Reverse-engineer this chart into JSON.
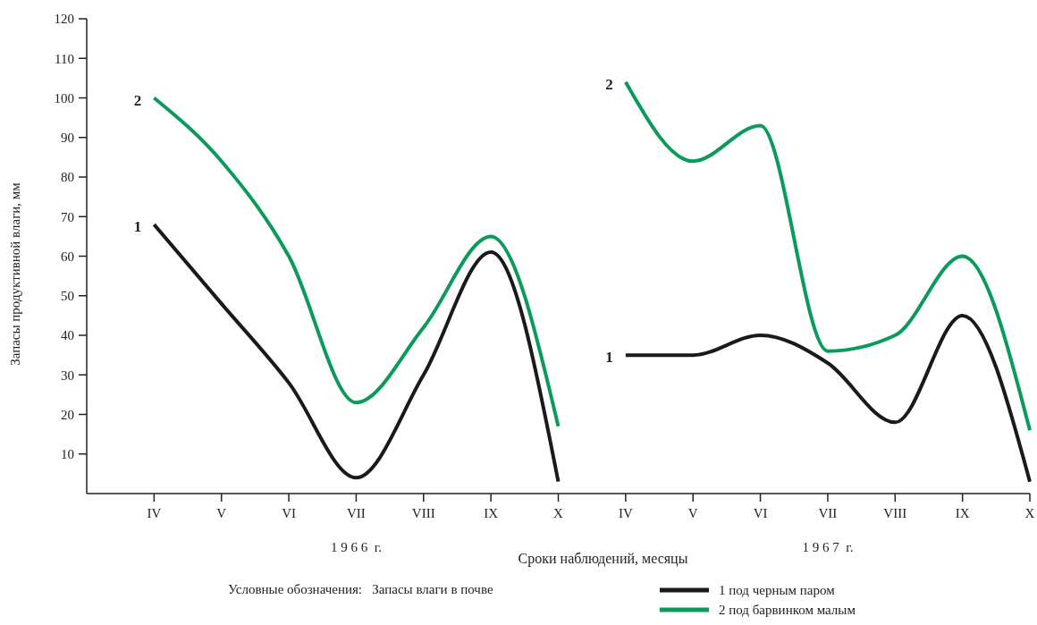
{
  "chart_data": {
    "type": "line",
    "ylabel": "Запасы продуктивной влаги, мм",
    "xlabel": "Сроки наблюдений, месяцы",
    "legend_title": "Условные обозначения:   Запасы влаги в почве",
    "legend": "bottom",
    "grid": false,
    "marker": "none",
    "line_style": "solid",
    "categories": [
      "IV",
      "V",
      "VI",
      "VII",
      "VIII",
      "IX",
      "X",
      "IV",
      "V",
      "VI",
      "VII",
      "VIII",
      "IX",
      "X"
    ],
    "ylim": [
      0,
      120
    ],
    "yticks": [
      10,
      20,
      30,
      40,
      50,
      60,
      70,
      80,
      90,
      100,
      110,
      120
    ],
    "series": [
      {
        "name": "1 под черным паром",
        "color": "#1a1a1a",
        "values": [
          68,
          48,
          28,
          4,
          30,
          61,
          3,
          null,
          null,
          null,
          null,
          null,
          null,
          null
        ]
      },
      {
        "name": "2 под барвинком малым",
        "color": "#0a9a5a",
        "values": [
          100,
          84,
          60,
          23,
          42,
          65,
          17,
          null,
          null,
          null,
          null,
          null,
          null,
          null
        ]
      },
      {
        "color": "#1a1a1a",
        "values": [
          null,
          null,
          null,
          null,
          null,
          null,
          null,
          35,
          35,
          40,
          33,
          18,
          45,
          3
        ]
      },
      {
        "color": "#0a9a5a",
        "values": [
          null,
          null,
          null,
          null,
          null,
          null,
          null,
          104,
          84,
          93,
          36,
          40,
          60,
          16
        ]
      }
    ],
    "annotations": [
      {
        "text": "1",
        "x": "IV",
        "y": 68
      },
      {
        "text": "2",
        "x": "IV",
        "y": 100
      },
      "1 9 6 6  г.",
      "1 9 6 7  г.",
      "1",
      "2"
    ]
  }
}
